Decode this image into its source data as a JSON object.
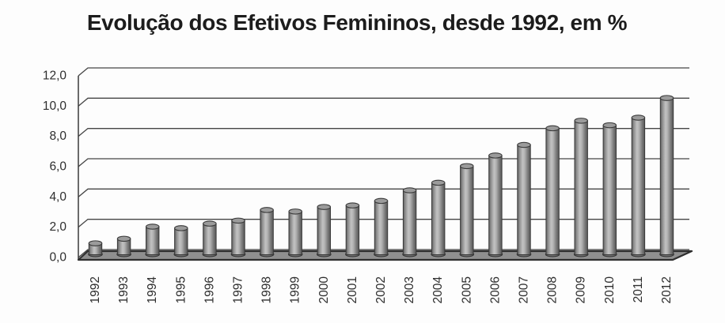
{
  "chart_data": {
    "type": "bar",
    "style": "3d-cylinder-grayscale",
    "title": "Evolução dos Efetivos Femininos, desde 1992, em %",
    "categories": [
      "1992",
      "1993",
      "1994",
      "1995",
      "1996",
      "1997",
      "1998",
      "1999",
      "2000",
      "2001",
      "2002",
      "2003",
      "2004",
      "2005",
      "2006",
      "2007",
      "2008",
      "2009",
      "2010",
      "2011",
      "2012"
    ],
    "values": [
      0.7,
      1.0,
      1.8,
      1.7,
      2.0,
      2.2,
      2.9,
      2.8,
      3.1,
      3.2,
      3.5,
      4.2,
      4.7,
      5.8,
      6.5,
      7.2,
      8.3,
      8.8,
      8.5,
      9.0,
      10.3
    ],
    "xlabel": "",
    "ylabel": "",
    "ylim": [
      0,
      12
    ],
    "y_tick_step": 2,
    "y_tick_labels_bottom_to_top": [
      "0,0",
      "2,0",
      "4,0",
      "6,0",
      "8,0",
      "10,0",
      "12,0"
    ],
    "decimal_separator": ",",
    "grid": true,
    "legend": null,
    "x_tick_rotation_degrees": 90,
    "colors": {
      "background": "#fdfdfd",
      "title_color": "#1c1c1c",
      "gridline": "#454545",
      "axis": "#3a3a3a",
      "floor_fill": "#8f8f8f",
      "floor_outline": "#2f2f2f",
      "bar_outline": "#3a3a3a",
      "bar_edge_dark": "#5e5e5e",
      "bar_mid_light": "#c2c2c2",
      "bar_cap_fill": "#9b9b9b",
      "bar_foot_fill": "#6f6f6f",
      "tick_label_color": "#2e2e2e"
    }
  }
}
